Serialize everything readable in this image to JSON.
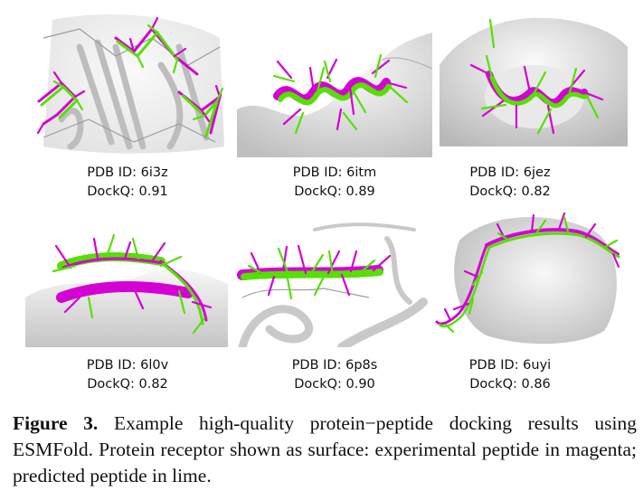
{
  "panels": [
    {
      "pdb_label": "PDB ID: 6i3z",
      "dockq_label": "DockQ: 0.91"
    },
    {
      "pdb_label": "PDB ID: 6itm",
      "dockq_label": "DockQ: 0.89"
    },
    {
      "pdb_label": "PDB ID: 6jez",
      "dockq_label": "DockQ: 0.82"
    },
    {
      "pdb_label": "PDB ID: 6l0v",
      "dockq_label": "DockQ: 0.82"
    },
    {
      "pdb_label": "PDB ID: 6p8s",
      "dockq_label": "DockQ: 0.90"
    },
    {
      "pdb_label": "PDB ID: 6uyi",
      "dockq_label": "DockQ: 0.86"
    }
  ],
  "caption": {
    "label": "Figure 3.",
    "text": "Example high-quality protein−peptide docking results using ESMFold. Protein receptor shown as surface: experimental peptide in magenta; predicted peptide in lime."
  },
  "colors": {
    "experimental": "#d400d4",
    "predicted": "#55e000",
    "surface": "#dcdcdc"
  }
}
